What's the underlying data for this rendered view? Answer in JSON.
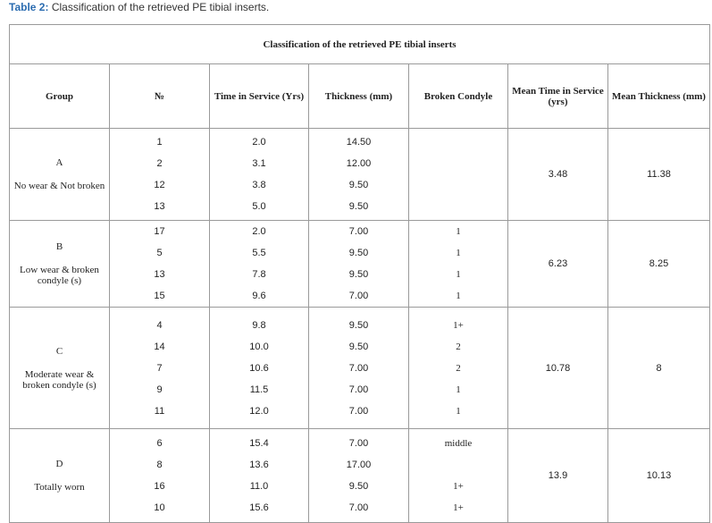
{
  "caption": {
    "label": "Table 2:",
    "text": "Classification of the retrieved PE tibial inserts."
  },
  "table": {
    "title": "Classification of the retrieved PE tibial inserts",
    "headers": [
      "Group",
      "№",
      "Time in Service (Yrs)",
      "Thickness (mm)",
      "Broken Condyle",
      "Mean Time in Service (yrs)",
      "Mean Thickness (mm)"
    ],
    "groups": [
      {
        "letter": "A",
        "description": "No wear & Not broken",
        "rows": [
          [
            "1",
            "2.0",
            "14.50",
            null
          ],
          [
            "2",
            "3.1",
            "12.00",
            null
          ],
          [
            "12",
            "3.8",
            "9.50",
            null
          ],
          [
            "13",
            "5.0",
            "9.50",
            null
          ]
        ],
        "mean_time": "3.48",
        "mean_thickness": "11.38"
      },
      {
        "letter": "B",
        "description": "Low wear & broken condyle (s)",
        "rows": [
          [
            "17",
            "2.0",
            "7.00",
            "1"
          ],
          [
            "5",
            "5.5",
            "9.50",
            "1"
          ],
          [
            "13",
            "7.8",
            "9.50",
            "1"
          ],
          [
            "15",
            "9.6",
            "7.00",
            "1"
          ]
        ],
        "mean_time": "6.23",
        "mean_thickness": "8.25"
      },
      {
        "letter": "C",
        "description": "Moderate wear & broken condyle (s)",
        "rows": [
          [
            "4",
            "9.8",
            "9.50",
            "1+"
          ],
          [
            "14",
            "10.0",
            "9.50",
            "2"
          ],
          [
            "7",
            "10.6",
            "7.00",
            "2"
          ],
          [
            "9",
            "11.5",
            "7.00",
            "1"
          ],
          [
            "11",
            "12.0",
            "7.00",
            "1"
          ]
        ],
        "mean_time": "10.78",
        "mean_thickness": "8"
      },
      {
        "letter": "D",
        "description": "Totally worn",
        "rows": [
          [
            "6",
            "15.4",
            "7.00",
            "middle"
          ],
          [
            "8",
            "13.6",
            "17.00",
            null
          ],
          [
            "16",
            "11.0",
            "9.50",
            "1+"
          ],
          [
            "10",
            "15.6",
            "7.00",
            "1+"
          ]
        ],
        "mean_time": "13.9",
        "mean_thickness": "10.13"
      }
    ]
  }
}
